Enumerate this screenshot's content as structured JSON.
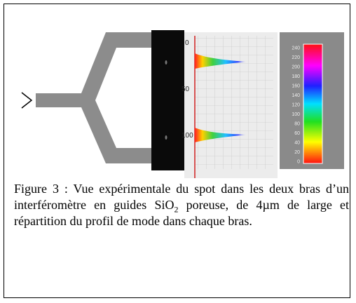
{
  "figure": {
    "axis_labels": [
      "0",
      "50",
      "100"
    ],
    "colorbar_labels": [
      "240",
      "220",
      "200",
      "180",
      "160",
      "140",
      "120",
      "100",
      "80",
      "60",
      "40",
      "20",
      "0"
    ]
  },
  "caption": {
    "before": "Figure 3 : Vue expérimentale du spot dans les deux bras d’un interféromètre en guides SiO",
    "subscript": "2",
    "after": " poreuse, de 4µm de large et répartition du profil de mode dans chaque bras."
  }
}
